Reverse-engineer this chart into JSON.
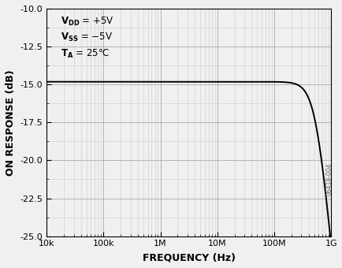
{
  "title": "",
  "xlabel": "FREQUENCY (Hz)",
  "ylabel": "ON RESPONSE (dB)",
  "xlim": [
    10000.0,
    1000000000.0
  ],
  "ylim": [
    -25.0,
    -10.0
  ],
  "yticks": [
    -25.0,
    -22.5,
    -20.0,
    -17.5,
    -15.0,
    -12.5,
    -10.0
  ],
  "ytick_labels": [
    "-25.0",
    "-22.5",
    "-20.0",
    "-17.5",
    "-15.0",
    "-12.5",
    "-10.0"
  ],
  "xtick_labels": [
    "10k",
    "100k",
    "1M",
    "10M",
    "100M",
    "1G"
  ],
  "xtick_values": [
    10000.0,
    100000.0,
    1000000.0,
    10000000.0,
    100000000.0,
    1000000000.0
  ],
  "annotation_lines": [
    "$\\mathbf{V_{DD}}$ = +5V",
    "$\\mathbf{V_{SS}}$ = −5V",
    "$\\mathbf{T_A}$ = 25°C"
  ],
  "watermark": "06418-004",
  "flat_level": -14.82,
  "curve_color": "#000000",
  "major_grid_color": "#aaaaaa",
  "minor_grid_color": "#cccccc",
  "background_color": "#f0f0f0",
  "fig_background": "#f0f0f0",
  "rolloff_f0": 550000000.0,
  "rolloff_order": 4.0
}
